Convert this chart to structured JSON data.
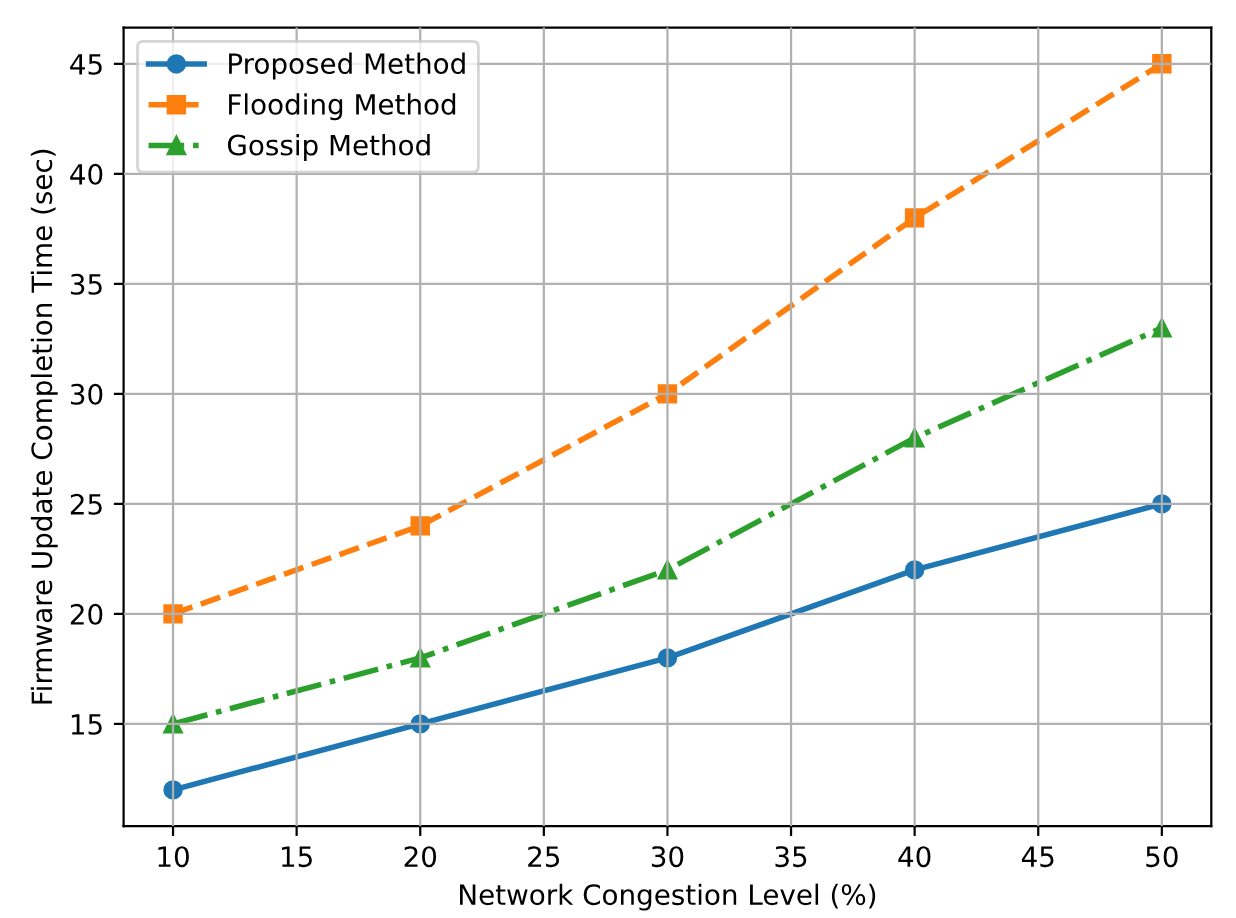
{
  "chart_data": {
    "type": "line",
    "xlabel": "Network Congestion Level (%)",
    "ylabel": "Firmware Update Completion Time (sec)",
    "x": [
      10,
      20,
      30,
      40,
      50
    ],
    "series": [
      {
        "name": "Proposed Method",
        "color": "#1f77b4",
        "values": [
          12,
          15,
          18,
          22,
          25
        ],
        "marker": "circle",
        "line_style": "solid"
      },
      {
        "name": "Flooding Method",
        "color": "#ff7f0e",
        "values": [
          20,
          24,
          30,
          38,
          45
        ],
        "marker": "square",
        "line_style": "dashed"
      },
      {
        "name": "Gossip Method",
        "color": "#2ca02c",
        "values": [
          15,
          18,
          22,
          28,
          33
        ],
        "marker": "triangle",
        "line_style": "dashdot"
      }
    ],
    "xlim": [
      8,
      52
    ],
    "ylim": [
      10.35,
      46.65
    ],
    "xticks": [
      10,
      15,
      20,
      25,
      30,
      35,
      40,
      45,
      50
    ],
    "yticks": [
      15,
      20,
      25,
      30,
      35,
      40,
      45
    ],
    "grid": true,
    "legend": "top left"
  }
}
